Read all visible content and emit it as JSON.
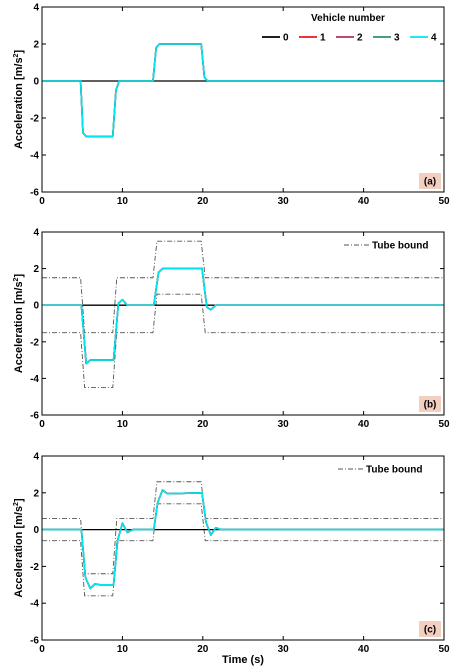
{
  "chart_data": [
    {
      "type": "line",
      "panel_label": "(a)",
      "ylabel": "Acceleration [m/s²]",
      "xlabel": "",
      "xlim": [
        0,
        50
      ],
      "ylim": [
        -6,
        4
      ],
      "xticks": [
        0,
        10,
        20,
        30,
        40,
        50
      ],
      "yticks": [
        -6,
        -4,
        -2,
        0,
        2,
        4
      ],
      "legend_title": "Vehicle number",
      "legend_position": "top-right",
      "series": [
        {
          "name": "0",
          "color": "#000000",
          "x": [
            0,
            50
          ],
          "y": [
            0,
            0
          ]
        },
        {
          "name": "1",
          "color": "#e41a1c",
          "x": [
            0,
            4.8,
            5.1,
            5.5,
            8.8,
            9.2,
            9.6,
            13.8,
            14.2,
            14.6,
            19.8,
            20.2,
            20.6,
            50
          ],
          "y": [
            0,
            0,
            -2.8,
            -3.0,
            -3.0,
            -0.5,
            0,
            0,
            1.8,
            2.0,
            2.0,
            0.2,
            0,
            0
          ]
        },
        {
          "name": "2",
          "color": "#b03060",
          "x": [
            0,
            4.8,
            5.1,
            5.5,
            8.8,
            9.2,
            9.6,
            13.8,
            14.2,
            14.6,
            19.8,
            20.2,
            20.6,
            50
          ],
          "y": [
            0,
            0,
            -2.8,
            -3.0,
            -3.0,
            -0.5,
            0,
            0,
            1.8,
            2.0,
            2.0,
            0.2,
            0,
            0
          ]
        },
        {
          "name": "3",
          "color": "#2e8b7a",
          "x": [
            0,
            4.8,
            5.1,
            5.5,
            8.8,
            9.2,
            9.6,
            13.8,
            14.2,
            14.6,
            19.8,
            20.2,
            20.6,
            50
          ],
          "y": [
            0,
            0,
            -2.8,
            -3.0,
            -3.0,
            -0.5,
            0,
            0,
            1.8,
            2.0,
            2.0,
            0.2,
            0,
            0
          ]
        },
        {
          "name": "4",
          "color": "#00e5ee",
          "x": [
            0,
            4.8,
            5.1,
            5.5,
            8.8,
            9.2,
            9.6,
            13.8,
            14.2,
            14.6,
            19.8,
            20.2,
            20.6,
            50
          ],
          "y": [
            0,
            0,
            -2.8,
            -3.0,
            -3.0,
            -0.5,
            0,
            0,
            1.8,
            2.0,
            2.0,
            0.2,
            0,
            0
          ]
        }
      ]
    },
    {
      "type": "line",
      "panel_label": "(b)",
      "ylabel": "Acceleration [m/s²]",
      "xlabel": "",
      "xlim": [
        0,
        50
      ],
      "ylim": [
        -6,
        4
      ],
      "xticks": [
        0,
        10,
        20,
        30,
        40,
        50
      ],
      "yticks": [
        -6,
        -4,
        -2,
        0,
        2,
        4
      ],
      "legend_position": "top-right",
      "tube_label": "Tube bound",
      "tube": {
        "upper": {
          "x": [
            0,
            4.8,
            5.3,
            8.8,
            9.3,
            13.8,
            14.3,
            19.8,
            20.3,
            50
          ],
          "y": [
            1.5,
            1.5,
            -1.5,
            -1.5,
            1.5,
            1.5,
            3.5,
            3.5,
            1.5,
            1.5
          ]
        },
        "lower": {
          "x": [
            0,
            4.8,
            5.3,
            8.8,
            9.3,
            13.8,
            14.3,
            19.8,
            20.3,
            50
          ],
          "y": [
            -1.5,
            -1.5,
            -4.5,
            -4.5,
            -1.5,
            -1.5,
            0.6,
            0.6,
            -1.5,
            -1.5
          ]
        }
      },
      "series": [
        {
          "name": "0",
          "color": "#000000",
          "x": [
            0,
            50
          ],
          "y": [
            0,
            0
          ]
        },
        {
          "name": "1",
          "color": "#e41a1c",
          "x": [
            0,
            4.9,
            5.5,
            6.0,
            8.9,
            9.5,
            10.0,
            10.6,
            13.9,
            14.5,
            15.0,
            19.9,
            20.5,
            21.0,
            21.6,
            50
          ],
          "y": [
            0,
            0,
            -3.2,
            -3.0,
            -3.0,
            0.1,
            0.3,
            0,
            0,
            1.8,
            2.0,
            2.0,
            -0.1,
            -0.25,
            0,
            0
          ]
        },
        {
          "name": "2",
          "color": "#b03060",
          "x": [
            0,
            4.9,
            5.5,
            6.0,
            8.9,
            9.5,
            10.0,
            10.6,
            13.9,
            14.5,
            15.0,
            19.9,
            20.5,
            21.0,
            21.6,
            50
          ],
          "y": [
            0,
            0,
            -3.2,
            -3.0,
            -3.0,
            0.1,
            0.3,
            0,
            0,
            1.8,
            2.0,
            2.0,
            -0.1,
            -0.25,
            0,
            0
          ]
        },
        {
          "name": "3",
          "color": "#2e8b7a",
          "x": [
            0,
            4.9,
            5.5,
            6.0,
            8.9,
            9.5,
            10.0,
            10.6,
            13.9,
            14.5,
            15.0,
            19.9,
            20.5,
            21.0,
            21.6,
            50
          ],
          "y": [
            0,
            0,
            -3.2,
            -3.0,
            -3.0,
            0.1,
            0.3,
            0,
            0,
            1.8,
            2.0,
            2.0,
            -0.1,
            -0.25,
            0,
            0
          ]
        },
        {
          "name": "4",
          "color": "#00e5ee",
          "x": [
            0,
            4.9,
            5.5,
            6.0,
            8.9,
            9.5,
            10.0,
            10.6,
            13.9,
            14.5,
            15.0,
            19.9,
            20.5,
            21.0,
            21.6,
            50
          ],
          "y": [
            0,
            0,
            -3.2,
            -3.0,
            -3.0,
            0.1,
            0.3,
            0,
            0,
            1.8,
            2.0,
            2.0,
            -0.1,
            -0.25,
            0,
            0
          ]
        }
      ]
    },
    {
      "type": "line",
      "panel_label": "(c)",
      "ylabel": "Acceleration [m/s²]",
      "xlabel": "Time (s)",
      "xlim": [
        0,
        50
      ],
      "ylim": [
        -6,
        4
      ],
      "xticks": [
        0,
        10,
        20,
        30,
        40,
        50
      ],
      "yticks": [
        -6,
        -4,
        -2,
        0,
        2,
        4
      ],
      "legend_position": "top-right",
      "tube_label": "Tube bound",
      "tube": {
        "upper": {
          "x": [
            0,
            4.8,
            5.3,
            8.8,
            9.3,
            13.8,
            14.3,
            19.8,
            20.3,
            50
          ],
          "y": [
            0.6,
            0.6,
            -2.4,
            -2.4,
            0.6,
            0.6,
            2.6,
            2.6,
            0.6,
            0.6
          ]
        },
        "lower": {
          "x": [
            0,
            4.8,
            5.3,
            8.8,
            9.3,
            13.8,
            14.3,
            19.8,
            20.3,
            50
          ],
          "y": [
            -0.6,
            -0.6,
            -3.6,
            -3.6,
            -0.6,
            -0.6,
            1.4,
            1.4,
            -0.6,
            -0.6
          ]
        }
      },
      "series": [
        {
          "name": "0",
          "color": "#000000",
          "x": [
            0,
            50
          ],
          "y": [
            0,
            0
          ]
        },
        {
          "name": "1",
          "color": "#e41a1c",
          "x": [
            0,
            4.9,
            5.4,
            6.0,
            6.6,
            7.2,
            8.9,
            9.4,
            10.0,
            10.6,
            11.3,
            13.9,
            14.4,
            15.0,
            15.6,
            19.9,
            20.4,
            21.0,
            21.6,
            22.3,
            50
          ],
          "y": [
            0,
            0,
            -2.6,
            -3.2,
            -2.95,
            -3.0,
            -3.0,
            -0.6,
            0.35,
            -0.15,
            0,
            0,
            1.5,
            2.15,
            1.95,
            2.0,
            0.4,
            -0.3,
            0.1,
            0,
            0
          ]
        },
        {
          "name": "2",
          "color": "#b03060",
          "x": [
            0,
            4.9,
            5.4,
            6.0,
            6.6,
            7.2,
            8.9,
            9.4,
            10.0,
            10.6,
            11.3,
            13.9,
            14.4,
            15.0,
            15.6,
            19.9,
            20.4,
            21.0,
            21.6,
            22.3,
            50
          ],
          "y": [
            0,
            0,
            -2.6,
            -3.2,
            -2.95,
            -3.0,
            -3.0,
            -0.6,
            0.35,
            -0.15,
            0,
            0,
            1.5,
            2.15,
            1.95,
            2.0,
            0.4,
            -0.3,
            0.1,
            0,
            0
          ]
        },
        {
          "name": "3",
          "color": "#2e8b7a",
          "x": [
            0,
            4.9,
            5.4,
            6.0,
            6.6,
            7.2,
            8.9,
            9.4,
            10.0,
            10.6,
            11.3,
            13.9,
            14.4,
            15.0,
            15.6,
            19.9,
            20.4,
            21.0,
            21.6,
            22.3,
            50
          ],
          "y": [
            0,
            0,
            -2.6,
            -3.2,
            -2.95,
            -3.0,
            -3.0,
            -0.6,
            0.35,
            -0.15,
            0,
            0,
            1.5,
            2.15,
            1.95,
            2.0,
            0.4,
            -0.3,
            0.1,
            0,
            0
          ]
        },
        {
          "name": "4",
          "color": "#00e5ee",
          "x": [
            0,
            4.9,
            5.4,
            6.0,
            6.6,
            7.2,
            8.9,
            9.4,
            10.0,
            10.6,
            11.3,
            13.9,
            14.4,
            15.0,
            15.6,
            19.9,
            20.4,
            21.0,
            21.6,
            22.3,
            50
          ],
          "y": [
            0,
            0,
            -2.6,
            -3.2,
            -2.95,
            -3.0,
            -3.0,
            -0.6,
            0.35,
            -0.15,
            0,
            0,
            1.5,
            2.15,
            1.95,
            2.0,
            0.4,
            -0.3,
            0.1,
            0,
            0
          ]
        }
      ]
    }
  ],
  "colors": {
    "badge_fill": "#f2cfc0",
    "tube": "#555555",
    "grid": "#000000"
  }
}
